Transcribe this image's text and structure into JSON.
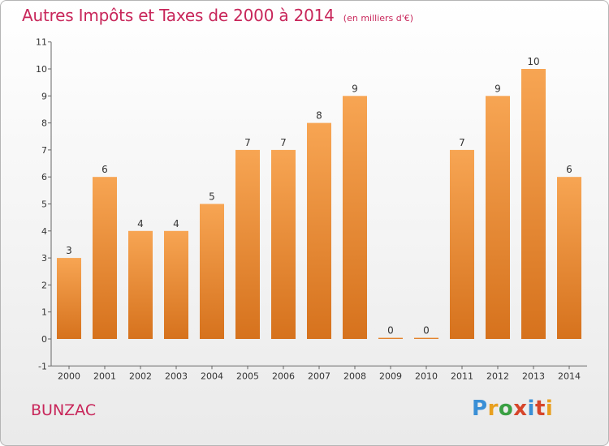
{
  "header": {
    "title": "Autres Impôts et Taxes de 2000 à 2014",
    "unit": "(en milliers d'€)"
  },
  "footer": {
    "commune": "BUNZAC",
    "logo_text": "Proxiti"
  },
  "colors": {
    "title": "#c8265a",
    "bar_top": "#f7a553",
    "bar_bottom": "#d6721d",
    "axis": "#666666"
  },
  "chart_data": {
    "type": "bar",
    "title": "Autres Impôts et Taxes de 2000 à 2014",
    "subtitle": "(en milliers d'€)",
    "categories": [
      "2000",
      "2001",
      "2002",
      "2003",
      "2004",
      "2005",
      "2006",
      "2007",
      "2008",
      "2009",
      "2010",
      "2011",
      "2012",
      "2013",
      "2014"
    ],
    "values": [
      3,
      6,
      4,
      4,
      5,
      7,
      7,
      8,
      9,
      0,
      0,
      7,
      9,
      10,
      6
    ],
    "ylim": [
      -1,
      11
    ],
    "yticks": [
      "-1",
      "0",
      "1",
      "2",
      "3",
      "4",
      "5",
      "6",
      "7",
      "8",
      "9",
      "10",
      "11"
    ],
    "grid": false,
    "xlabel": "",
    "ylabel": ""
  }
}
